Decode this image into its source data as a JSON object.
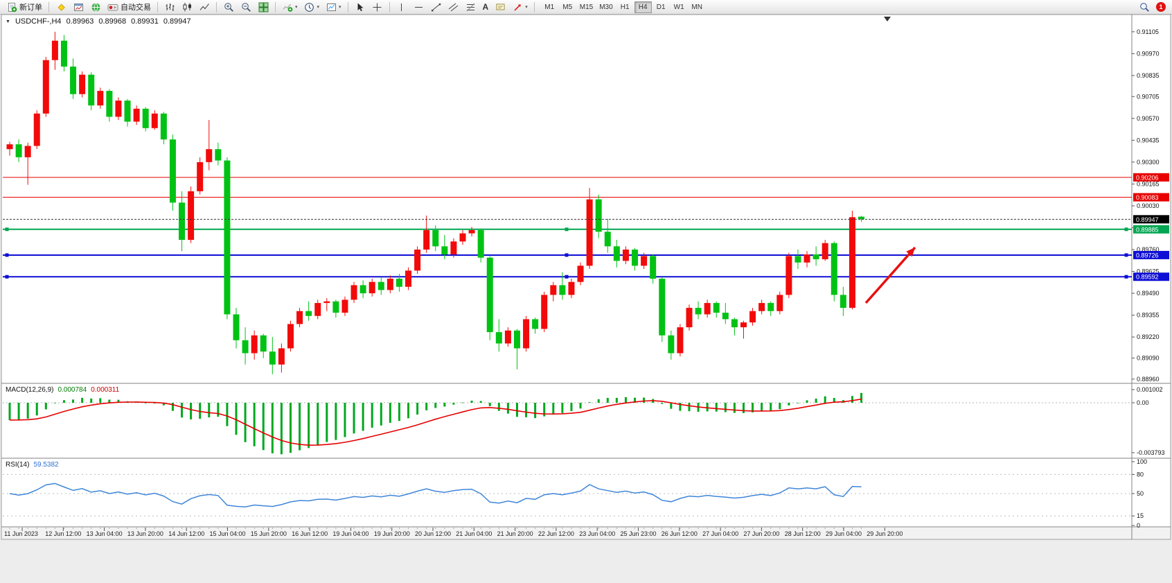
{
  "toolbar": {
    "new_order": "新订单",
    "auto_trading": "自动交易",
    "timeframes": [
      "M1",
      "M5",
      "M15",
      "M30",
      "H1",
      "H4",
      "D1",
      "W1",
      "MN"
    ],
    "active_timeframe": "H4",
    "badge_count": "1"
  },
  "chart_header": {
    "symbol": "USDCHF-,H4",
    "open": "0.89963",
    "high": "0.89968",
    "low": "0.89931",
    "close": "0.89947"
  },
  "colors": {
    "bull_candle": "#f20a0a",
    "bear_candle": "#00c214",
    "macd_hist": "#00a81e",
    "macd_signal": "#e60000",
    "rsi_line": "#3e86d8",
    "bid_line": "#3a3a3a"
  },
  "main_chart": {
    "bid_label": "0.89947",
    "hlines": [
      {
        "price": 0.90206,
        "label": "0.90206",
        "color": "#e80000",
        "width": 1,
        "handles": false
      },
      {
        "price": 0.90083,
        "label": "0.90083",
        "color": "#e80000",
        "width": 1,
        "handles": false
      },
      {
        "price": 0.89885,
        "label": "0.89885",
        "color": "#00a651",
        "width": 2,
        "handles": true
      },
      {
        "price": 0.89726,
        "label": "0.89726",
        "color": "#0f0fd6",
        "width": 2,
        "handles": true
      },
      {
        "price": 0.89592,
        "label": "0.89592",
        "color": "#0f0fd6",
        "width": 2,
        "handles": true
      }
    ],
    "annotations": [
      {
        "type": "arrow",
        "color": "#e81010",
        "from": [
          1250,
          437
        ],
        "to": [
          1321,
          357
        ]
      }
    ]
  },
  "price_axis": {
    "ticks": [
      "0.91105",
      "0.90970",
      "0.90835",
      "0.90705",
      "0.90570",
      "0.90435",
      "0.90300",
      "0.90165",
      "0.90030",
      "0.89895",
      "0.89760",
      "0.89625",
      "0.89490",
      "0.89355",
      "0.89220",
      "0.89090",
      "0.88960"
    ]
  },
  "macd": {
    "label": "MACD(12,26,9)",
    "main_value": "0.000784",
    "signal_value": "0.000311",
    "axis": [
      {
        "label": "0.001002",
        "value": 0.001002
      },
      {
        "label": "0.00",
        "value": 0
      },
      {
        "label": "-0.003793",
        "value": -0.003793
      }
    ]
  },
  "rsi": {
    "label": "RSI(14)",
    "value": "59.5382",
    "levels": [
      {
        "label": "100",
        "value": 100,
        "dashed": false
      },
      {
        "label": "80",
        "value": 80,
        "dashed": true
      },
      {
        "label": "50",
        "value": 50,
        "dashed": true
      },
      {
        "label": "15",
        "value": 15,
        "dashed": true
      },
      {
        "label": "0",
        "value": 0,
        "dashed": false
      }
    ]
  },
  "time_axis": {
    "labels": [
      "11 Jun 2023",
      "12 Jun 12:00",
      "13 Jun 04:00",
      "13 Jun 20:00",
      "14 Jun 12:00",
      "15 Jun 04:00",
      "15 Jun 20:00",
      "16 Jun 12:00",
      "19 Jun 04:00",
      "19 Jun 20:00",
      "20 Jun 12:00",
      "21 Jun 04:00",
      "21 Jun 20:00",
      "22 Jun 12:00",
      "23 Jun 04:00",
      "25 Jun 23:00",
      "26 Jun 12:00",
      "27 Jun 04:00",
      "27 Jun 20:00",
      "28 Jun 12:00",
      "29 Jun 04:00",
      "29 Jun 20:00"
    ]
  },
  "chart_data": {
    "type": "candlestick",
    "symbol": "USDCHF-",
    "timeframe": "H4",
    "bid": 0.89947,
    "ohlc_current": {
      "open": 0.89963,
      "high": 0.89968,
      "low": 0.89931,
      "close": 0.89947
    },
    "y_range": [
      0.88938,
      0.9113
    ],
    "indicators": [
      {
        "name": "MACD",
        "params": [
          12,
          26,
          9
        ],
        "values": [
          0.000784,
          0.000311
        ]
      },
      {
        "name": "RSI",
        "params": [
          14
        ],
        "value": 59.5382
      }
    ],
    "candles": [
      [
        0.9038,
        0.90425,
        0.9034,
        0.9041
      ],
      [
        0.9041,
        0.9044,
        0.903,
        0.9033
      ],
      [
        0.9033,
        0.9042,
        0.9016,
        0.904
      ],
      [
        0.904,
        0.9062,
        0.9038,
        0.906
      ],
      [
        0.906,
        0.9095,
        0.9058,
        0.9093
      ],
      [
        0.9093,
        0.91105,
        0.9087,
        0.9105
      ],
      [
        0.9105,
        0.91085,
        0.9086,
        0.9089
      ],
      [
        0.9089,
        0.9094,
        0.9069,
        0.9072
      ],
      [
        0.9072,
        0.9086,
        0.907,
        0.9084
      ],
      [
        0.9084,
        0.90855,
        0.9062,
        0.9065
      ],
      [
        0.9065,
        0.9076,
        0.9063,
        0.9074
      ],
      [
        0.9074,
        0.9075,
        0.9055,
        0.9058
      ],
      [
        0.9058,
        0.907,
        0.9056,
        0.9068
      ],
      [
        0.9068,
        0.9069,
        0.9052,
        0.9055
      ],
      [
        0.9055,
        0.9065,
        0.9053,
        0.9063
      ],
      [
        0.9063,
        0.9064,
        0.9049,
        0.9051
      ],
      [
        0.9051,
        0.9062,
        0.905,
        0.906
      ],
      [
        0.906,
        0.9061,
        0.9041,
        0.9044
      ],
      [
        0.9044,
        0.9047,
        0.9,
        0.9005
      ],
      [
        0.9005,
        0.9012,
        0.8975,
        0.8982
      ],
      [
        0.8982,
        0.9015,
        0.898,
        0.9012
      ],
      [
        0.9012,
        0.9033,
        0.901,
        0.903
      ],
      [
        0.903,
        0.9056,
        0.9025,
        0.9038
      ],
      [
        0.9038,
        0.9042,
        0.9028,
        0.9031
      ],
      [
        0.9031,
        0.9033,
        0.8933,
        0.8936
      ],
      [
        0.8936,
        0.894,
        0.8915,
        0.892
      ],
      [
        0.892,
        0.8928,
        0.8905,
        0.8912
      ],
      [
        0.8912,
        0.8926,
        0.8908,
        0.8923
      ],
      [
        0.8923,
        0.8924,
        0.8909,
        0.8913
      ],
      [
        0.8913,
        0.8922,
        0.8899,
        0.8905
      ],
      [
        0.8905,
        0.8918,
        0.89,
        0.8915
      ],
      [
        0.8915,
        0.8932,
        0.8913,
        0.893
      ],
      [
        0.893,
        0.894,
        0.8928,
        0.8938
      ],
      [
        0.8938,
        0.8944,
        0.8932,
        0.8935
      ],
      [
        0.8935,
        0.8945,
        0.8933,
        0.8943
      ],
      [
        0.8943,
        0.8946,
        0.8938,
        0.8944
      ],
      [
        0.8944,
        0.8945,
        0.8934,
        0.8937
      ],
      [
        0.8937,
        0.8947,
        0.8935,
        0.8945
      ],
      [
        0.8945,
        0.8956,
        0.8943,
        0.8954
      ],
      [
        0.8954,
        0.8957,
        0.8946,
        0.8949
      ],
      [
        0.8949,
        0.8958,
        0.8947,
        0.8956
      ],
      [
        0.8956,
        0.8959,
        0.8948,
        0.8951
      ],
      [
        0.8951,
        0.896,
        0.8949,
        0.8958
      ],
      [
        0.8958,
        0.8961,
        0.895,
        0.8953
      ],
      [
        0.8953,
        0.8965,
        0.8951,
        0.8963
      ],
      [
        0.8963,
        0.8978,
        0.8961,
        0.8976
      ],
      [
        0.8976,
        0.8997,
        0.8974,
        0.8988
      ],
      [
        0.8988,
        0.8991,
        0.8975,
        0.8978
      ],
      [
        0.8978,
        0.8985,
        0.897,
        0.8973
      ],
      [
        0.8973,
        0.8983,
        0.8971,
        0.8981
      ],
      [
        0.8981,
        0.8988,
        0.8979,
        0.8986
      ],
      [
        0.8986,
        0.899,
        0.8984,
        0.8988
      ],
      [
        0.8988,
        0.8989,
        0.8968,
        0.8971
      ],
      [
        0.8971,
        0.8972,
        0.892,
        0.8925
      ],
      [
        0.8925,
        0.8933,
        0.8913,
        0.8918
      ],
      [
        0.8918,
        0.8928,
        0.8916,
        0.8926
      ],
      [
        0.8926,
        0.8927,
        0.8902,
        0.8915
      ],
      [
        0.8915,
        0.8935,
        0.8913,
        0.8933
      ],
      [
        0.8933,
        0.8934,
        0.8924,
        0.8927
      ],
      [
        0.8927,
        0.895,
        0.8925,
        0.8948
      ],
      [
        0.8948,
        0.8956,
        0.8944,
        0.8954
      ],
      [
        0.8954,
        0.8962,
        0.8945,
        0.8948
      ],
      [
        0.8948,
        0.8958,
        0.8946,
        0.8956
      ],
      [
        0.8956,
        0.8968,
        0.8954,
        0.8966
      ],
      [
        0.8966,
        0.9014,
        0.8964,
        0.9007
      ],
      [
        0.9007,
        0.901,
        0.8983,
        0.8987
      ],
      [
        0.8987,
        0.8995,
        0.8974,
        0.8978
      ],
      [
        0.8978,
        0.8982,
        0.8965,
        0.8969
      ],
      [
        0.8969,
        0.8978,
        0.8967,
        0.8976
      ],
      [
        0.8976,
        0.8977,
        0.8963,
        0.8966
      ],
      [
        0.8966,
        0.8974,
        0.8964,
        0.8972
      ],
      [
        0.8972,
        0.8973,
        0.8955,
        0.8958
      ],
      [
        0.8958,
        0.8959,
        0.8919,
        0.8923
      ],
      [
        0.8923,
        0.8926,
        0.8908,
        0.8912
      ],
      [
        0.8912,
        0.893,
        0.891,
        0.8928
      ],
      [
        0.8928,
        0.8942,
        0.8926,
        0.894
      ],
      [
        0.894,
        0.8944,
        0.8933,
        0.8936
      ],
      [
        0.8936,
        0.8945,
        0.8934,
        0.8943
      ],
      [
        0.8943,
        0.8944,
        0.8934,
        0.8937
      ],
      [
        0.8937,
        0.8943,
        0.893,
        0.8933
      ],
      [
        0.8933,
        0.8934,
        0.8923,
        0.8928
      ],
      [
        0.8928,
        0.8932,
        0.8921,
        0.8931
      ],
      [
        0.8931,
        0.894,
        0.8929,
        0.8938
      ],
      [
        0.8938,
        0.8945,
        0.8936,
        0.8943
      ],
      [
        0.8943,
        0.8944,
        0.8935,
        0.8938
      ],
      [
        0.8938,
        0.895,
        0.8936,
        0.8948
      ],
      [
        0.8948,
        0.8974,
        0.8946,
        0.8972
      ],
      [
        0.8972,
        0.8976,
        0.8964,
        0.8968
      ],
      [
        0.8968,
        0.8975,
        0.8965,
        0.8973
      ],
      [
        0.8973,
        0.8978,
        0.8966,
        0.897
      ],
      [
        0.897,
        0.8982,
        0.8969,
        0.898
      ],
      [
        0.898,
        0.8981,
        0.8944,
        0.8948
      ],
      [
        0.8948,
        0.8953,
        0.8935,
        0.894
      ],
      [
        0.894,
        0.9,
        0.8939,
        0.8996
      ],
      [
        0.89963,
        0.89968,
        0.89931,
        0.89947
      ]
    ]
  }
}
